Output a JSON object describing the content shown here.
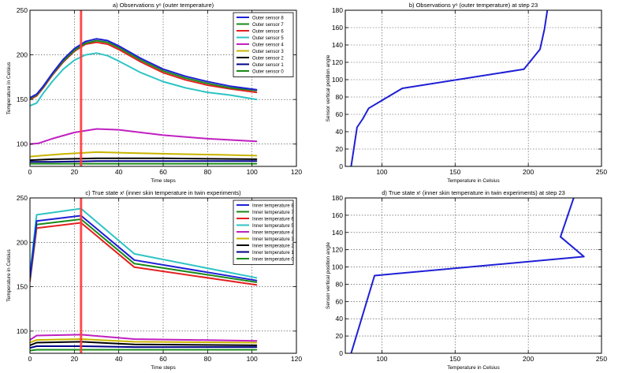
{
  "chart_data": [
    {
      "id": "a",
      "type": "line",
      "title": "a) Observations yᵒ  (outer temperature)",
      "xlabel": "Time steps",
      "ylabel": "Temperature in Celsius",
      "xlim": [
        0,
        120
      ],
      "ylim": [
        75,
        250
      ],
      "xticks": [
        0,
        20,
        40,
        60,
        80,
        100,
        120
      ],
      "yticks": [
        100,
        150,
        200,
        250
      ],
      "grid": true,
      "legend": "top-right",
      "vline": {
        "x": 23,
        "color": "#ff3b3b"
      },
      "series": [
        {
          "name": "Outer sensor 8",
          "color": "#1f1fd6",
          "x": [
            0,
            3,
            6,
            10,
            15,
            20,
            25,
            30,
            35,
            40,
            50,
            60,
            70,
            80,
            90,
            102
          ],
          "y": [
            152,
            156,
            165,
            179,
            195,
            207,
            215,
            218,
            216,
            210,
            196,
            184,
            176,
            170,
            165,
            161
          ]
        },
        {
          "name": "Outer sensor 7",
          "color": "#1a8a1a",
          "x": [
            0,
            3,
            6,
            10,
            15,
            20,
            25,
            30,
            35,
            40,
            50,
            60,
            70,
            80,
            90,
            102
          ],
          "y": [
            151,
            155,
            164,
            178,
            193,
            205,
            213,
            216,
            214,
            208,
            194,
            182,
            174,
            168,
            163,
            160
          ]
        },
        {
          "name": "Outer sensor 6",
          "color": "#e32020",
          "x": [
            0,
            3,
            6,
            10,
            15,
            20,
            25,
            30,
            35,
            40,
            50,
            60,
            70,
            80,
            90,
            102
          ],
          "y": [
            150,
            154,
            163,
            177,
            192,
            204,
            212,
            214,
            212,
            206,
            192,
            180,
            172,
            166,
            162,
            158
          ]
        },
        {
          "name": "Outer sensor 5",
          "color": "#2ec4c4",
          "x": [
            0,
            3,
            6,
            10,
            15,
            20,
            25,
            30,
            35,
            40,
            50,
            60,
            70,
            80,
            90,
            102
          ],
          "y": [
            143,
            146,
            157,
            170,
            184,
            194,
            200,
            202,
            199,
            193,
            180,
            170,
            163,
            158,
            155,
            150
          ]
        },
        {
          "name": "Outer sensor 4",
          "color": "#c020c0",
          "x": [
            0,
            4,
            10,
            20,
            30,
            40,
            60,
            80,
            102
          ],
          "y": [
            100,
            101,
            106,
            113,
            117,
            116,
            110,
            106,
            103
          ]
        },
        {
          "name": "Outer sensor 3",
          "color": "#c8b400",
          "x": [
            0,
            5,
            15,
            30,
            45,
            65,
            85,
            102
          ],
          "y": [
            86,
            87,
            89,
            91,
            90,
            89,
            88,
            87
          ]
        },
        {
          "name": "Outer sensor 2",
          "color": "#000000",
          "x": [
            0,
            10,
            30,
            60,
            102
          ],
          "y": [
            82,
            83,
            84,
            84,
            83
          ]
        },
        {
          "name": "Outer sensor 1",
          "color": "#000088",
          "x": [
            0,
            10,
            30,
            60,
            102
          ],
          "y": [
            80,
            80,
            81,
            81,
            81
          ]
        },
        {
          "name": "Outer sensor 0",
          "color": "#1a8a1a",
          "x": [
            0,
            10,
            30,
            60,
            102
          ],
          "y": [
            78,
            78,
            78,
            78,
            78
          ]
        }
      ]
    },
    {
      "id": "b",
      "type": "line",
      "title": "b) Observations yᵒ  (outer temperature) at step 23",
      "xlabel": "Temperature in Celsius",
      "ylabel": "Sensor vertical position angle",
      "xlim": [
        75,
        250
      ],
      "ylim": [
        0,
        180
      ],
      "xticks": [
        100,
        150,
        200,
        250
      ],
      "yticks": [
        0,
        20,
        40,
        60,
        80,
        100,
        120,
        140,
        160,
        180
      ],
      "grid": true,
      "series": [
        {
          "name": "step 23",
          "color": "#1f1fd6",
          "x": [
            79,
            81,
            83,
            87,
            91,
            100,
            114,
            197,
            208,
            211,
            213
          ],
          "y": [
            0,
            22,
            45,
            55,
            67,
            76,
            90,
            112,
            135,
            158,
            180
          ]
        }
      ]
    },
    {
      "id": "c",
      "type": "line",
      "title": "c) True state xᵗ  (inner skin temperature in twin experiments)",
      "xlabel": "Time steps",
      "ylabel": "Temperature in Celsius",
      "xlim": [
        0,
        120
      ],
      "ylim": [
        75,
        250
      ],
      "xticks": [
        0,
        20,
        40,
        60,
        80,
        100,
        120
      ],
      "yticks": [
        100,
        150,
        200,
        250
      ],
      "grid": true,
      "legend": "top-right",
      "vline": {
        "x": 23,
        "color": "#ff3b3b"
      },
      "series": [
        {
          "name": "Inner temperature 8",
          "color": "#1f1fd6",
          "x": [
            0,
            3,
            23,
            47,
            102
          ],
          "y": [
            160,
            224,
            230,
            180,
            157
          ]
        },
        {
          "name": "Inner temperature 7",
          "color": "#1a8a1a",
          "x": [
            0,
            3,
            23,
            47,
            102
          ],
          "y": [
            158,
            220,
            226,
            176,
            155
          ]
        },
        {
          "name": "Inner temperature 6",
          "color": "#e32020",
          "x": [
            0,
            3,
            23,
            47,
            102
          ],
          "y": [
            156,
            216,
            222,
            172,
            152
          ]
        },
        {
          "name": "Inner temperature 5",
          "color": "#2ec4c4",
          "x": [
            0,
            3,
            23,
            47,
            102
          ],
          "y": [
            165,
            231,
            238,
            187,
            160
          ]
        },
        {
          "name": "Inner temperature 4",
          "color": "#c020c0",
          "x": [
            0,
            3,
            23,
            47,
            102
          ],
          "y": [
            90,
            95,
            96,
            91,
            89
          ]
        },
        {
          "name": "Inner temperature 3",
          "color": "#c8b400",
          "x": [
            0,
            3,
            23,
            47,
            102
          ],
          "y": [
            87,
            90,
            91,
            88,
            87
          ]
        },
        {
          "name": "Inner temperature 2",
          "color": "#000000",
          "x": [
            0,
            3,
            23,
            47,
            102
          ],
          "y": [
            84,
            87,
            88,
            85,
            84
          ]
        },
        {
          "name": "Inner temperature 1",
          "color": "#000088",
          "x": [
            0,
            3,
            23,
            47,
            102
          ],
          "y": [
            81,
            83,
            83,
            82,
            82
          ]
        },
        {
          "name": "Inner temperature 0",
          "color": "#1a8a1a",
          "x": [
            0,
            3,
            23,
            47,
            102
          ],
          "y": [
            78,
            79,
            79,
            79,
            79
          ]
        }
      ]
    },
    {
      "id": "d",
      "type": "line",
      "title": "d) True state xᵗ  (inner skin temperature in twin experiments) at step 23",
      "xlabel": "Temperature in Celsius",
      "ylabel": "Sensor vertical position angle",
      "xlim": [
        75,
        250
      ],
      "ylim": [
        0,
        180
      ],
      "xticks": [
        100,
        150,
        200,
        250
      ],
      "yticks": [
        0,
        20,
        40,
        60,
        80,
        100,
        120,
        140,
        160,
        180
      ],
      "grid": true,
      "series": [
        {
          "name": "step 23",
          "color": "#1f1fd6",
          "x": [
            79,
            95,
            238,
            222,
            231
          ],
          "y": [
            0,
            90,
            112,
            135,
            180
          ]
        }
      ]
    }
  ]
}
